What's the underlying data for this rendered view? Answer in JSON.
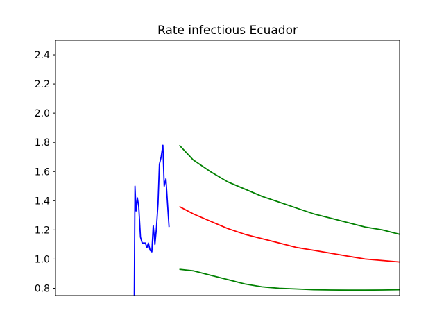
{
  "chart_data": {
    "type": "line",
    "title": "Rate infectious Ecuador",
    "xlabel": "",
    "ylabel": "",
    "ylim": [
      0.75,
      2.5
    ],
    "xlim": [
      0,
      100
    ],
    "yticks": [
      "0.8",
      "1.0",
      "1.2",
      "1.4",
      "1.6",
      "1.8",
      "2.0",
      "2.2",
      "2.4"
    ],
    "ytick_values": [
      0.8,
      1.0,
      1.2,
      1.4,
      1.6,
      1.8,
      2.0,
      2.2,
      2.4
    ],
    "xticks_visible": false,
    "grid": false,
    "series": [
      {
        "color": "#0000ff",
        "x": [
          22.9,
          23.1,
          23.4,
          23.8,
          24.2,
          24.7,
          25.2,
          25.6,
          26.1,
          26.6,
          27.0,
          27.5,
          28.0,
          28.4,
          28.9,
          29.3,
          29.8,
          30.2,
          30.7,
          31.2,
          31.6,
          32.1,
          32.5,
          33.0,
          33.4,
          33.9,
          34.3,
          34.8,
          35.2,
          35.7
        ],
        "values": [
          0.75,
          1.5,
          1.33,
          1.42,
          1.36,
          1.15,
          1.11,
          1.11,
          1.11,
          1.08,
          1.11,
          1.06,
          1.05,
          1.23,
          1.1,
          1.2,
          1.38,
          1.65,
          1.7,
          1.78,
          1.5,
          1.55,
          1.4,
          1.22,
          null,
          null,
          null,
          null,
          null,
          null
        ]
      },
      {
        "color": "#ff0000",
        "x": [
          36.0,
          40,
          45,
          50,
          55,
          60,
          65,
          70,
          75,
          80,
          85,
          90,
          95,
          100
        ],
        "values": [
          1.36,
          1.31,
          1.26,
          1.21,
          1.17,
          1.14,
          1.11,
          1.08,
          1.06,
          1.04,
          1.02,
          1.0,
          0.99,
          0.98
        ]
      },
      {
        "color": "#008000",
        "x": [
          36.0,
          40,
          45,
          50,
          55,
          60,
          65,
          70,
          75,
          80,
          85,
          90,
          95,
          100
        ],
        "values": [
          1.78,
          1.68,
          1.6,
          1.53,
          1.48,
          1.43,
          1.39,
          1.35,
          1.31,
          1.28,
          1.25,
          1.22,
          1.2,
          1.17
        ]
      },
      {
        "color": "#008000",
        "x": [
          36.0,
          40,
          45,
          50,
          55,
          60,
          65,
          70,
          75,
          80,
          85,
          90,
          95,
          100
        ],
        "values": [
          0.93,
          0.92,
          0.89,
          0.86,
          0.83,
          0.81,
          0.8,
          0.795,
          0.79,
          0.788,
          0.787,
          0.787,
          0.788,
          0.79
        ]
      }
    ]
  }
}
